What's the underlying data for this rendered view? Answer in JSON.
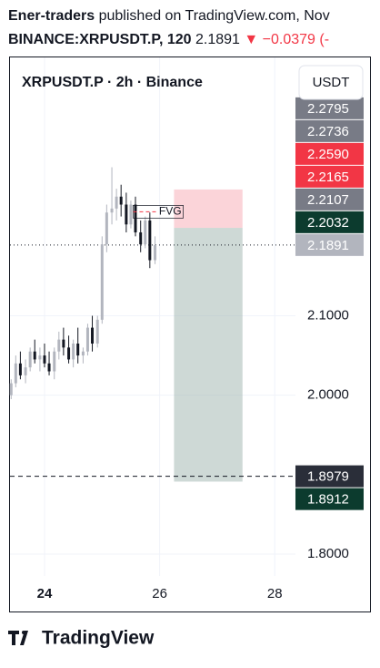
{
  "header": {
    "author": "Ener-traders",
    "published": "published on TradingView.com, Nov",
    "symbol": "BINANCE:XRPUSDT.P, 120",
    "price": "2.1891",
    "change": "▼ −0.0379 (-"
  },
  "chart_data": {
    "type": "candlestick",
    "title": "XRPUSDT.P · 2h · Binance",
    "currency": "USDT",
    "x": [
      23.42,
      23.5,
      23.58,
      23.67,
      23.75,
      23.83,
      23.92,
      24,
      24.08,
      24.17,
      24.25,
      24.33,
      24.42,
      24.5,
      24.58,
      24.67,
      24.75,
      24.83,
      24.92,
      25,
      25.08,
      25.17,
      25.25,
      25.33,
      25.42,
      25.5,
      25.58,
      25.67,
      25.75,
      25.83,
      25.92
    ],
    "open": [
      2.0,
      2.015,
      2.04,
      2.025,
      2.035,
      2.055,
      2.045,
      2.05,
      2.04,
      2.03,
      2.055,
      2.07,
      2.06,
      2.045,
      2.065,
      2.05,
      2.055,
      2.085,
      2.065,
      2.095,
      2.19,
      2.23,
      2.235,
      2.25,
      2.24,
      2.215,
      2.24,
      2.205,
      2.19,
      2.22,
      2.17
    ],
    "high": [
      2.02,
      2.05,
      2.055,
      2.045,
      2.06,
      2.07,
      2.06,
      2.065,
      2.055,
      2.06,
      2.08,
      2.085,
      2.075,
      2.07,
      2.085,
      2.06,
      2.09,
      2.1,
      2.1,
      2.2,
      2.24,
      2.287,
      2.26,
      2.265,
      2.255,
      2.245,
      2.25,
      2.22,
      2.225,
      2.23,
      2.2
    ],
    "low": [
      1.995,
      2.01,
      2.02,
      2.015,
      2.03,
      2.04,
      2.03,
      2.035,
      2.025,
      2.02,
      2.045,
      2.05,
      2.04,
      2.035,
      2.04,
      2.04,
      2.05,
      2.055,
      2.06,
      2.09,
      2.18,
      2.215,
      2.22,
      2.225,
      2.205,
      2.21,
      2.2,
      2.18,
      2.185,
      2.16,
      2.165
    ],
    "close": [
      2.015,
      2.04,
      2.025,
      2.035,
      2.055,
      2.045,
      2.05,
      2.04,
      2.03,
      2.055,
      2.07,
      2.06,
      2.045,
      2.065,
      2.05,
      2.055,
      2.085,
      2.065,
      2.095,
      2.19,
      2.23,
      2.235,
      2.25,
      2.24,
      2.215,
      2.24,
      2.205,
      2.19,
      2.22,
      2.17,
      2.189
    ],
    "up_color": "#b2b5be",
    "down_color": "#131722",
    "xlim": [
      23.4,
      28.36
    ],
    "xticks": [
      24,
      26,
      28
    ],
    "ylim": [
      1.7724,
      2.4253
    ],
    "yticks": [
      {
        "value": 1.8,
        "label": "1.8000"
      },
      {
        "value": 2.0,
        "label": "2.0000"
      },
      {
        "value": 2.1,
        "label": "2.1000"
      }
    ],
    "grid": true,
    "position": {
      "x_start": 26.25,
      "x_end": 27.44,
      "entry": 2.2107,
      "stop": 2.259,
      "target": 1.8912,
      "stop_color": "#f7a9b3",
      "target_color": "#9db3ad"
    },
    "fvg": {
      "label": "FVG",
      "x_start": 25.54,
      "x_end": 26.41,
      "top": 2.239,
      "bottom": 2.223
    },
    "price_labels": [
      {
        "value": 2.2795,
        "label": "2.2795",
        "color": "#787b86"
      },
      {
        "value": 2.2736,
        "label": "2.2736",
        "color": "#787b86"
      },
      {
        "value": 2.259,
        "label": "2.2590",
        "color": "#f23645"
      },
      {
        "value": 2.2165,
        "label": "2.2165",
        "color": "#f23645"
      },
      {
        "value": 2.2107,
        "label": "2.2107",
        "color": "#787b86"
      },
      {
        "value": 2.2032,
        "label": "2.2032",
        "color": "#0c3b2e"
      },
      {
        "value": 2.1891,
        "label": "2.1891",
        "color": "#b2b5be",
        "line": "dotted"
      },
      {
        "value": 1.8979,
        "label": "1.8979",
        "color": "#2a2e39",
        "line": "dashed"
      },
      {
        "value": 1.8912,
        "label": "1.8912",
        "color": "#0c3b2e"
      }
    ]
  },
  "footer": {
    "brand": "TradingView"
  }
}
